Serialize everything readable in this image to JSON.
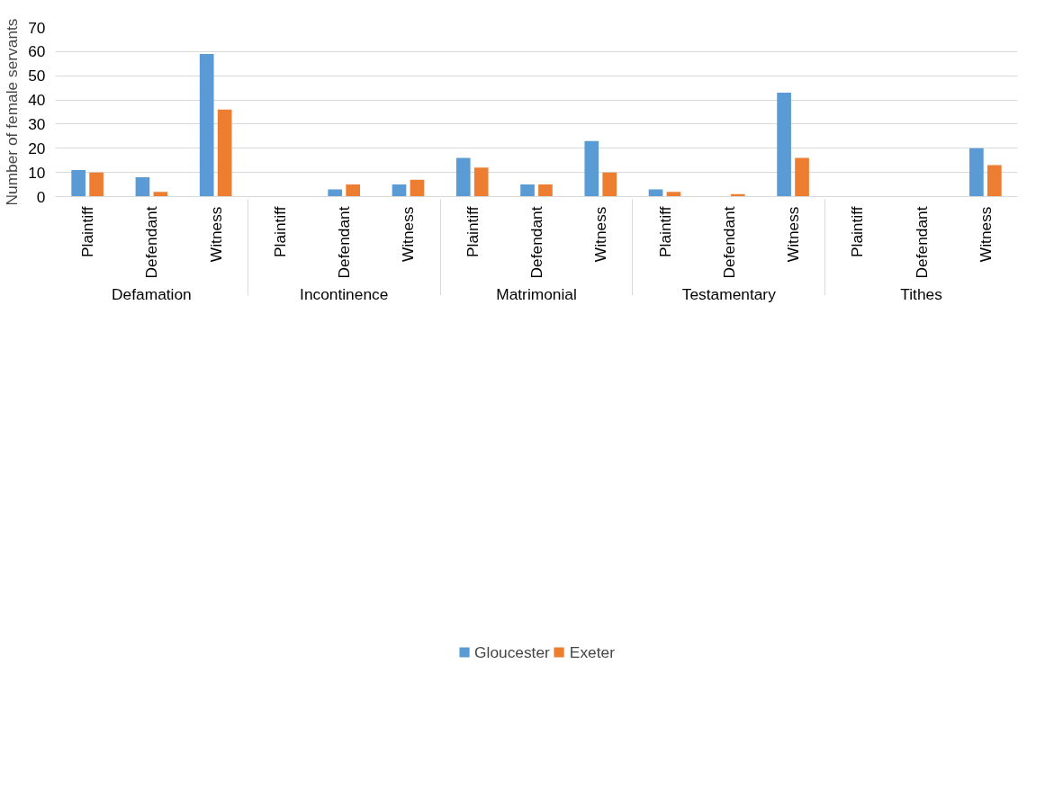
{
  "chart_data": {
    "type": "bar",
    "ylabel": "Number of female servants",
    "categories": [
      "Plaintiff",
      "Defendant",
      "Witness",
      "Plaintiff",
      "Defendant",
      "Witness",
      "Plaintiff",
      "Defendant",
      "Witness",
      "Plaintiff",
      "Defendant",
      "Witness",
      "Plaintiff",
      "Defendant",
      "Witness"
    ],
    "annotations": [
      "Defamation",
      "Incontinence",
      "Matrimonial",
      "Testamentary",
      "Tithes"
    ],
    "series": [
      {
        "name": "Gloucester",
        "color": "#5b9bd5",
        "values": [
          11,
          8,
          59,
          0,
          3,
          5,
          16,
          5,
          23,
          3,
          0,
          43,
          0,
          0,
          20
        ]
      },
      {
        "name": "Exeter",
        "color": "#ed7d31",
        "values": [
          10,
          2,
          36,
          0,
          5,
          7,
          12,
          5,
          10,
          2,
          1,
          16,
          0,
          0,
          13
        ]
      }
    ],
    "ylim": [
      0,
      70
    ],
    "yticks": [
      0,
      10,
      20,
      30,
      40,
      50,
      60,
      70
    ],
    "grid": "y",
    "legend": "bottom"
  }
}
